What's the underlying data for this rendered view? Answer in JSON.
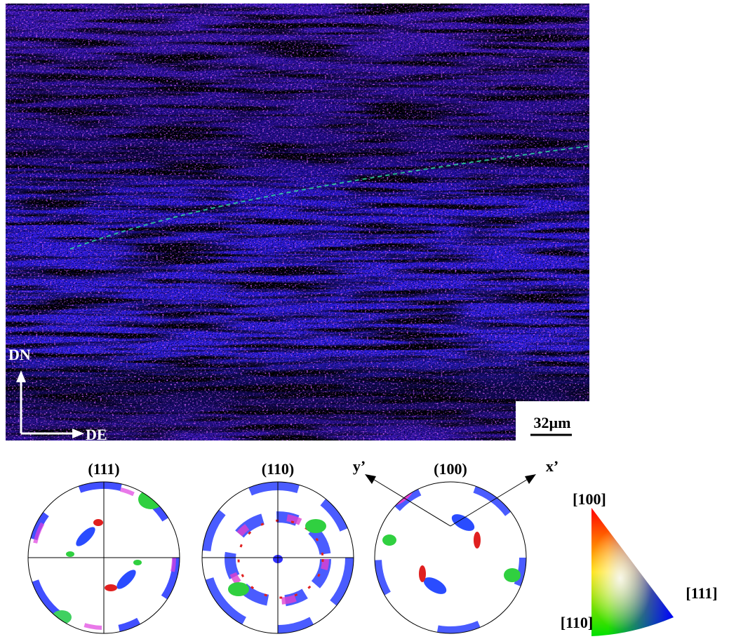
{
  "map": {
    "axes": {
      "vertical": "DN",
      "horizontal": "DE"
    },
    "scale_bar": "32µm"
  },
  "pole_figures": [
    {
      "title": "(111)"
    },
    {
      "title": "(110)"
    },
    {
      "title": "(100)",
      "axes": [
        "y’",
        "x’"
      ]
    }
  ],
  "color_key": {
    "labels": [
      "[100]",
      "[110]",
      "[111]"
    ]
  }
}
